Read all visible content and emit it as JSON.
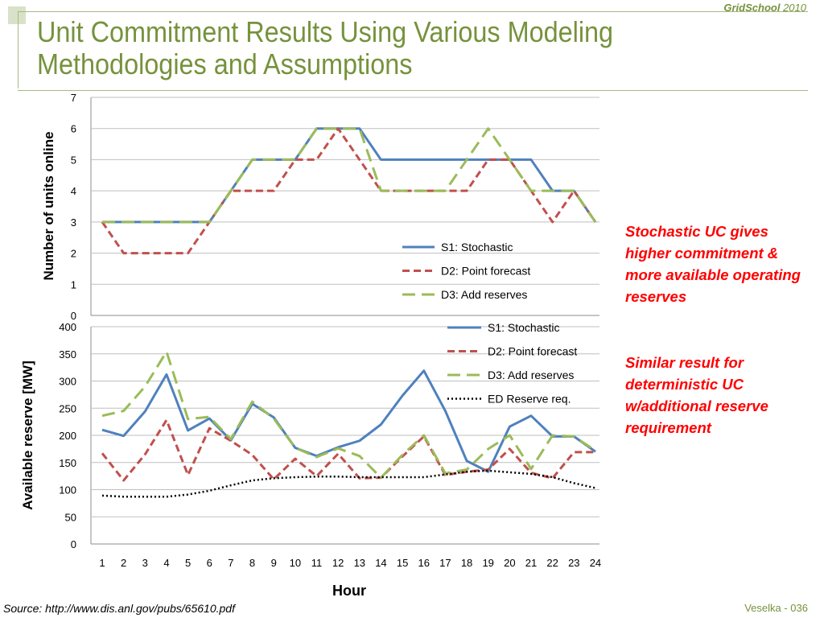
{
  "header": {
    "brand_name": "GridSchool",
    "brand_year": "2010",
    "title_line1": "Unit Commitment Results Using Various Modeling",
    "title_line2": "Methodologies and Assumptions"
  },
  "notes": {
    "note1": "Stochastic UC gives higher commitment & more available operating reserves",
    "note2": "Similar result for deterministic UC w/additional reserve requirement"
  },
  "footer": {
    "source": "Source: http://www.dis.anl.gov/pubs/65610.pdf",
    "page": "Veselka  - 036"
  },
  "colors": {
    "s1": "#4f81bd",
    "d2": "#c0504d",
    "d3": "#9bbb59",
    "ed": "#000000",
    "grid": "#bfbfbf"
  },
  "chart_data": [
    {
      "type": "line",
      "x": [
        1,
        2,
        3,
        4,
        5,
        6,
        7,
        8,
        9,
        10,
        11,
        12,
        13,
        14,
        15,
        16,
        17,
        18,
        19,
        20,
        21,
        22,
        23,
        24
      ],
      "ylabel": "Number of units online",
      "ylim": [
        0,
        7
      ],
      "yticks": [
        0,
        1,
        2,
        3,
        4,
        5,
        6,
        7
      ],
      "grid": true,
      "legend_position": "bottom-right",
      "series": [
        {
          "name": "S1: Stochastic",
          "color_key": "s1",
          "style": "solid",
          "values": [
            3,
            3,
            3,
            3,
            3,
            3,
            4,
            5,
            5,
            5,
            6,
            6,
            6,
            5,
            5,
            5,
            5,
            5,
            5,
            5,
            5,
            4,
            4,
            3
          ]
        },
        {
          "name": "D2: Point forecast",
          "color_key": "d2",
          "style": "dashed",
          "values": [
            3,
            2,
            2,
            2,
            2,
            3,
            4,
            4,
            4,
            5,
            5,
            6,
            5,
            4,
            4,
            4,
            4,
            4,
            5,
            5,
            4,
            3,
            4,
            3
          ]
        },
        {
          "name": "D3: Add reserves",
          "color_key": "d3",
          "style": "longdash",
          "values": [
            3,
            3,
            3,
            3,
            3,
            3,
            4,
            5,
            5,
            5,
            6,
            6,
            6,
            4,
            4,
            4,
            4,
            5,
            6,
            5,
            4,
            4,
            4,
            3
          ]
        }
      ]
    },
    {
      "type": "line",
      "x": [
        1,
        2,
        3,
        4,
        5,
        6,
        7,
        8,
        9,
        10,
        11,
        12,
        13,
        14,
        15,
        16,
        17,
        18,
        19,
        20,
        21,
        22,
        23,
        24
      ],
      "xticks": [
        "1",
        "2",
        "3",
        "4",
        "5",
        "6",
        "7",
        "8",
        "9",
        "10",
        "11",
        "12",
        "13",
        "14",
        "15",
        "16",
        "17",
        "18",
        "19",
        "20",
        "21",
        "22",
        "23",
        "24"
      ],
      "xlabel": "Hour",
      "ylabel": "Available reserve [MW]",
      "ylim": [
        0,
        400
      ],
      "yticks": [
        0,
        50,
        100,
        150,
        200,
        250,
        300,
        350,
        400
      ],
      "grid": true,
      "legend_position": "top-right",
      "series": [
        {
          "name": "S1: Stochastic",
          "color_key": "s1",
          "style": "solid",
          "values": [
            210,
            199,
            244,
            312,
            209,
            231,
            191,
            258,
            233,
            177,
            162,
            178,
            190,
            220,
            273,
            319,
            245,
            153,
            133,
            216,
            236,
            198,
            198,
            170
          ]
        },
        {
          "name": "D2: Point forecast",
          "color_key": "d2",
          "style": "dashed",
          "values": [
            167,
            117,
            165,
            228,
            127,
            213,
            190,
            164,
            119,
            157,
            125,
            166,
            121,
            122,
            161,
            198,
            127,
            133,
            137,
            175,
            131,
            121,
            169,
            169
          ]
        },
        {
          "name": "D3: Add reserves",
          "color_key": "d3",
          "style": "longdash",
          "values": [
            236,
            245,
            290,
            354,
            230,
            234,
            193,
            262,
            231,
            177,
            160,
            176,
            162,
            122,
            164,
            200,
            130,
            137,
            175,
            200,
            138,
            200,
            198,
            172
          ]
        },
        {
          "name": "ED Reserve req.",
          "color_key": "ed",
          "style": "dotted",
          "values": [
            89,
            87,
            87,
            87,
            91,
            98,
            108,
            117,
            121,
            123,
            124,
            124,
            123,
            123,
            123,
            123,
            128,
            133,
            135,
            132,
            129,
            123,
            112,
            103
          ]
        }
      ]
    }
  ]
}
